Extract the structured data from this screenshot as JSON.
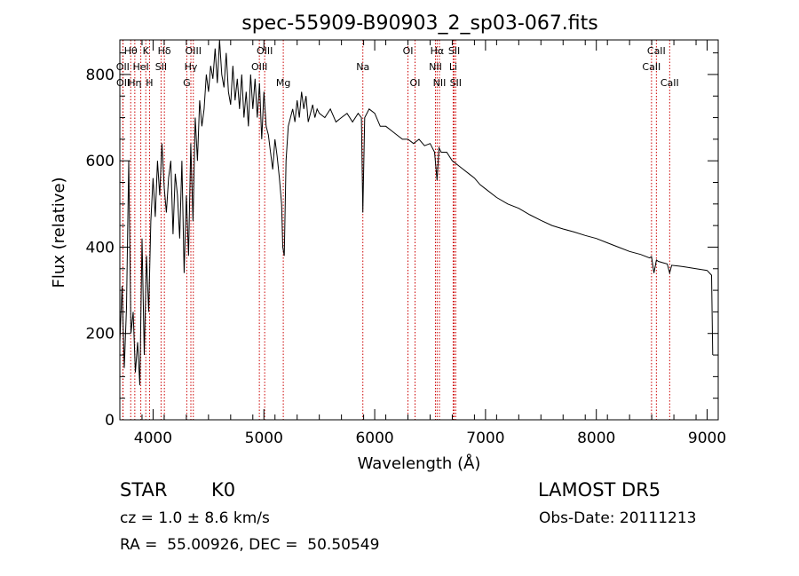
{
  "chart_data": {
    "type": "line",
    "title": "spec-55909-B90903_2_sp03-067.fits",
    "xlabel": "Wavelength (Å)",
    "ylabel": "Flux (relative)",
    "xlim": [
      3700,
      9100
    ],
    "ylim": [
      0,
      880
    ],
    "xticks": [
      4000,
      5000,
      6000,
      7000,
      8000,
      9000
    ],
    "yticks": [
      0,
      200,
      400,
      600,
      800
    ],
    "grid": false,
    "line_color": "#000000",
    "marker_color": "#cc0000",
    "series": [
      {
        "x": [
          3700,
          3720,
          3740,
          3760,
          3780,
          3800,
          3820,
          3840,
          3860,
          3880,
          3900,
          3920,
          3940,
          3960,
          3980,
          4000,
          4020,
          4040,
          4060,
          4080,
          4100,
          4120,
          4140,
          4160,
          4180,
          4200,
          4220,
          4240,
          4260,
          4280,
          4300,
          4320,
          4340,
          4360,
          4380,
          4400,
          4420,
          4440,
          4460,
          4480,
          4500,
          4520,
          4540,
          4560,
          4580,
          4600,
          4620,
          4640,
          4660,
          4680,
          4700,
          4720,
          4740,
          4760,
          4780,
          4800,
          4820,
          4840,
          4860,
          4880,
          4900,
          4920,
          4940,
          4960,
          4980,
          5000,
          5020,
          5040,
          5060,
          5080,
          5100,
          5120,
          5140,
          5160,
          5170,
          5184,
          5200,
          5220,
          5240,
          5260,
          5280,
          5300,
          5320,
          5340,
          5360,
          5380,
          5400,
          5420,
          5440,
          5460,
          5480,
          5500,
          5550,
          5600,
          5650,
          5700,
          5750,
          5800,
          5850,
          5880,
          5893,
          5910,
          5950,
          6000,
          6050,
          6100,
          6150,
          6200,
          6250,
          6300,
          6350,
          6400,
          6450,
          6500,
          6540,
          6563,
          6580,
          6600,
          6650,
          6700,
          6750,
          6800,
          6850,
          6900,
          6950,
          7000,
          7100,
          7200,
          7300,
          7400,
          7500,
          7600,
          7700,
          7800,
          7900,
          8000,
          8100,
          8200,
          8300,
          8400,
          8480,
          8498,
          8520,
          8542,
          8560,
          8600,
          8640,
          8662,
          8680,
          8750,
          8800,
          8850,
          8900,
          8950,
          9000,
          9040,
          9050
        ],
        "y": [
          180,
          310,
          120,
          260,
          600,
          200,
          250,
          110,
          180,
          80,
          420,
          150,
          380,
          250,
          460,
          560,
          470,
          600,
          520,
          640,
          540,
          480,
          560,
          600,
          430,
          570,
          520,
          420,
          600,
          340,
          520,
          380,
          640,
          460,
          700,
          600,
          740,
          680,
          720,
          800,
          760,
          820,
          790,
          860,
          780,
          880,
          800,
          770,
          850,
          760,
          730,
          820,
          740,
          790,
          720,
          800,
          700,
          760,
          680,
          800,
          720,
          790,
          700,
          780,
          650,
          760,
          680,
          660,
          620,
          580,
          650,
          610,
          560,
          500,
          400,
          380,
          600,
          680,
          700,
          720,
          690,
          740,
          700,
          760,
          720,
          750,
          690,
          710,
          730,
          700,
          720,
          710,
          700,
          720,
          690,
          700,
          710,
          690,
          710,
          700,
          480,
          700,
          720,
          710,
          680,
          680,
          670,
          660,
          650,
          650,
          640,
          650,
          635,
          640,
          620,
          555,
          630,
          620,
          620,
          600,
          590,
          580,
          570,
          560,
          545,
          535,
          515,
          500,
          490,
          475,
          462,
          450,
          442,
          435,
          427,
          420,
          410,
          400,
          390,
          383,
          375,
          378,
          340,
          370,
          367,
          364,
          361,
          340,
          358,
          356,
          354,
          352,
          350,
          348,
          346,
          335,
          150
        ]
      }
    ],
    "lines": [
      {
        "label": "Hθ",
        "row": 0,
        "x": 3798
      },
      {
        "label": "K",
        "row": 0,
        "x": 3934
      },
      {
        "label": "Hδ",
        "row": 0,
        "x": 4102
      },
      {
        "label": "OIII",
        "row": 0,
        "x": 4363
      },
      {
        "label": "OIII",
        "row": 0,
        "x": 5007
      },
      {
        "label": "OI",
        "row": 0,
        "x": 6300
      },
      {
        "label": "Hα",
        "row": 0,
        "x": 6563
      },
      {
        "label": "SII",
        "row": 0,
        "x": 6717
      },
      {
        "label": "CaII",
        "row": 0,
        "x": 8542
      },
      {
        "label": "OII",
        "row": 1,
        "x": 3727
      },
      {
        "label": "HeI",
        "row": 1,
        "x": 3889
      },
      {
        "label": "SII",
        "row": 1,
        "x": 4072
      },
      {
        "label": "Hγ",
        "row": 1,
        "x": 4341
      },
      {
        "label": "OIII",
        "row": 1,
        "x": 4959
      },
      {
        "label": "Na",
        "row": 1,
        "x": 5893
      },
      {
        "label": "NII",
        "row": 1,
        "x": 6548
      },
      {
        "label": "Li",
        "row": 1,
        "x": 6708
      },
      {
        "label": "CaII",
        "row": 1,
        "x": 8498
      },
      {
        "label": "OII",
        "row": 2,
        "x": 3729
      },
      {
        "label": "Hη",
        "row": 2,
        "x": 3835
      },
      {
        "label": "H",
        "row": 2,
        "x": 3968
      },
      {
        "label": "G",
        "row": 2,
        "x": 4304
      },
      {
        "label": "Mg",
        "row": 2,
        "x": 5175
      },
      {
        "label": "OI",
        "row": 2,
        "x": 6364
      },
      {
        "label": "NII",
        "row": 2,
        "x": 6584
      },
      {
        "label": "SII",
        "row": 2,
        "x": 6731
      },
      {
        "label": "CaII",
        "row": 2,
        "x": 8662
      }
    ]
  },
  "info": {
    "object_class": "STAR",
    "subclass": "K0",
    "survey": "LAMOST DR5",
    "redshift_line": "cz = 1.0 ± 8.6 km/s",
    "obs_date": "Obs-Date: 20111213",
    "coords": "RA =  55.00926, DEC =  50.50549"
  }
}
